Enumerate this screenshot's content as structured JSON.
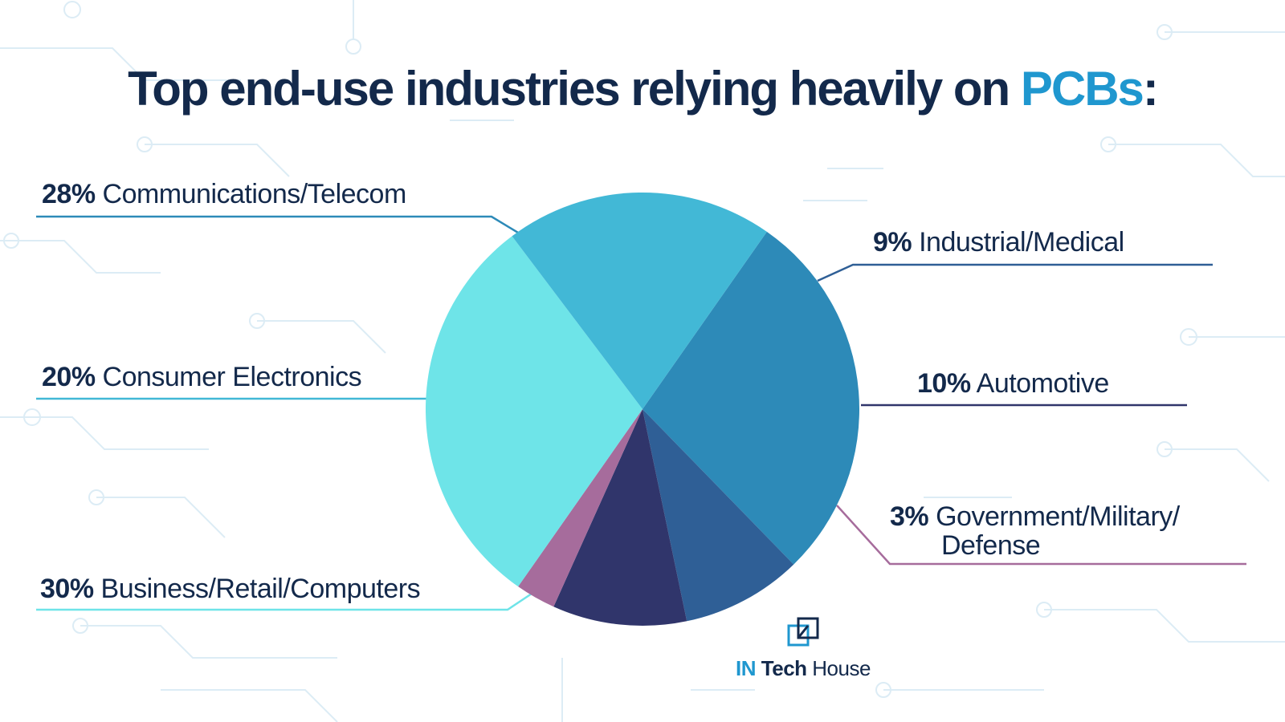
{
  "title": {
    "main": "Top end-use industries relying heavily on ",
    "highlight": "PCBs",
    "end": ":"
  },
  "chart_data": {
    "type": "pie",
    "title": "Top end-use industries relying heavily on PCBs:",
    "slices": [
      {
        "label": "Communications/Telecom",
        "value": 28,
        "color": "#2d8ab8"
      },
      {
        "label": "Industrial/Medical",
        "value": 9,
        "color": "#2f5f96"
      },
      {
        "label": "Automotive",
        "value": 10,
        "color": "#30356b"
      },
      {
        "label": "Government/Military/Defense",
        "value": 3,
        "color": "#a66c9c"
      },
      {
        "label": "Business/Retail/Computers",
        "value": 30,
        "color": "#6ee4e8"
      },
      {
        "label": "Consumer Electronics",
        "value": 20,
        "color": "#42b8d6"
      }
    ]
  },
  "labels": {
    "telecom": {
      "pct": "28%",
      "text": "Communications/Telecom"
    },
    "industrial": {
      "pct": "9%",
      "text": "Industrial/Medical"
    },
    "consumer": {
      "pct": "20%",
      "text": "Consumer Electronics"
    },
    "automotive": {
      "pct": "10%",
      "text": "Automotive"
    },
    "government": {
      "pct": "3%",
      "text": "Government/Military/",
      "text2": "Defense"
    },
    "business": {
      "pct": "30%",
      "text": "Business/Retail/Computers"
    }
  },
  "logo": {
    "in": "IN",
    "tech": "Tech",
    "house": "House"
  },
  "colors": {
    "navy": "#13294b",
    "accent": "#1f97cf",
    "circuit": "#dcecf5"
  }
}
